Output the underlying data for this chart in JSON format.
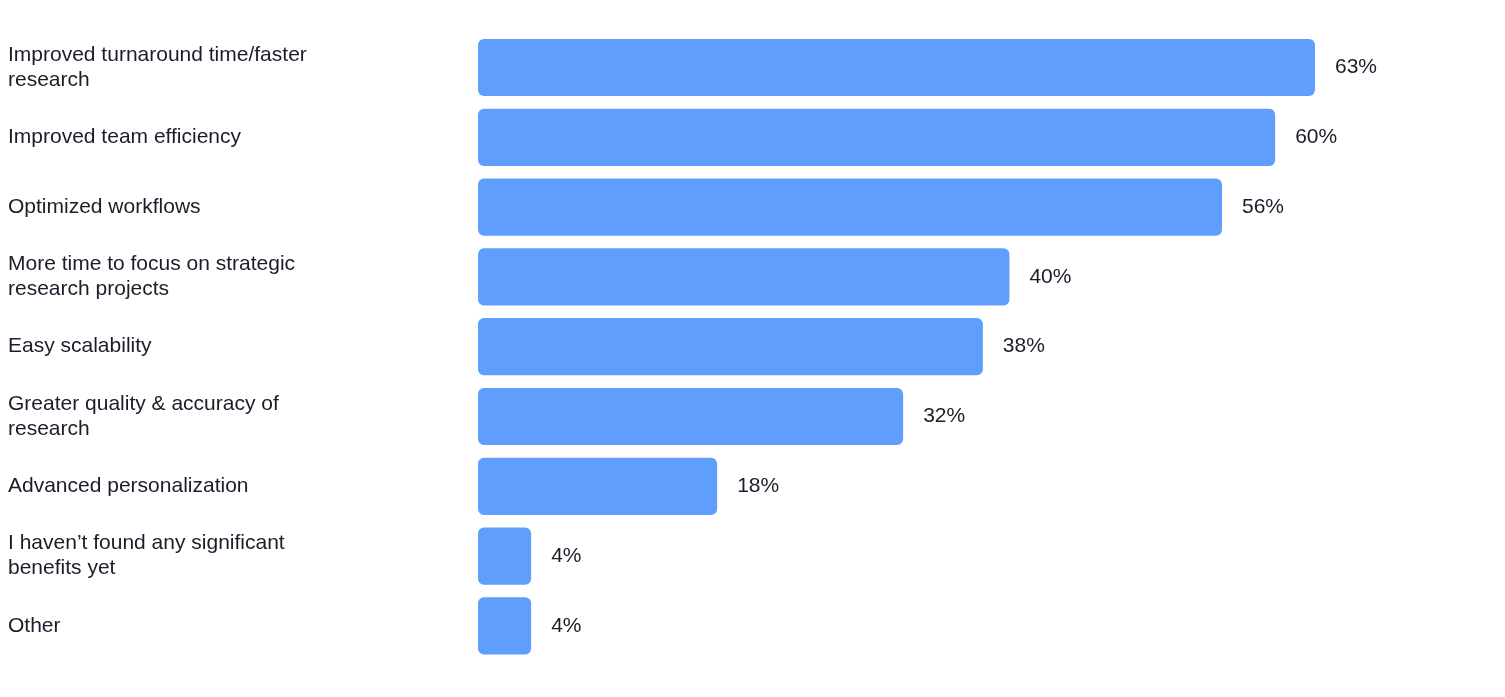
{
  "chart_data": {
    "type": "bar",
    "orientation": "horizontal",
    "categories": [
      "Improved turnaround time/faster research",
      "Improved team efficiency",
      "Optimized workflows",
      "More time to focus on strategic research projects",
      "Easy scalability",
      "Greater quality & accuracy of research",
      "Advanced personalization",
      "I haven’t found any significant benefits yet",
      "Other"
    ],
    "values": [
      63,
      60,
      56,
      40,
      38,
      32,
      18,
      4,
      4
    ],
    "value_labels": [
      "63%",
      "60%",
      "56%",
      "40%",
      "38%",
      "32%",
      "18%",
      "4%",
      "4%"
    ],
    "color": "#5f9efc",
    "tick_labels": "y"
  }
}
